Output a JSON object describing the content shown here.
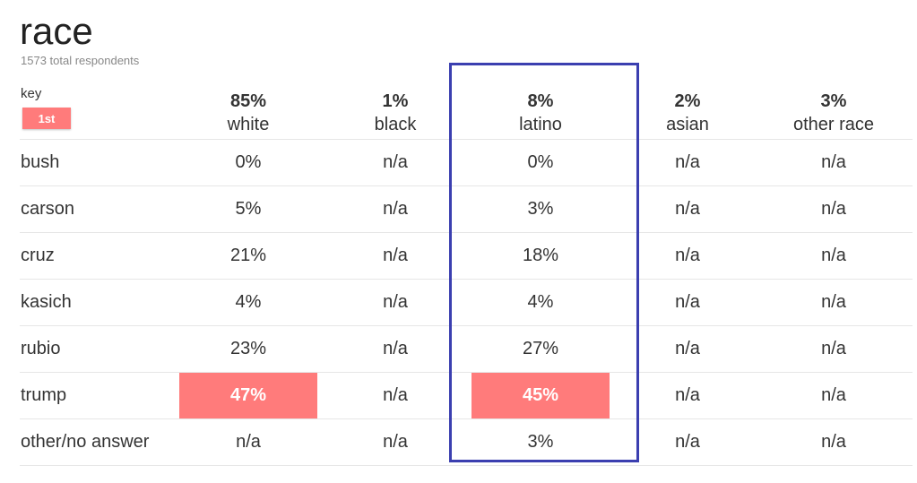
{
  "title": "race",
  "subtitle": "1573 total respondents",
  "key": {
    "label": "key",
    "badge": "1st"
  },
  "colors": {
    "highlight": "#ff7b7b",
    "outline": "#3b3fb0"
  },
  "columns": [
    {
      "pct": "85%",
      "name": "white"
    },
    {
      "pct": "1%",
      "name": "black"
    },
    {
      "pct": "8%",
      "name": "latino"
    },
    {
      "pct": "2%",
      "name": "asian"
    },
    {
      "pct": "3%",
      "name": "other race"
    }
  ],
  "rows": [
    {
      "label": "bush",
      "values": [
        "0%",
        "n/a",
        "0%",
        "n/a",
        "n/a"
      ]
    },
    {
      "label": "carson",
      "values": [
        "5%",
        "n/a",
        "3%",
        "n/a",
        "n/a"
      ]
    },
    {
      "label": "cruz",
      "values": [
        "21%",
        "n/a",
        "18%",
        "n/a",
        "n/a"
      ]
    },
    {
      "label": "kasich",
      "values": [
        "4%",
        "n/a",
        "4%",
        "n/a",
        "n/a"
      ]
    },
    {
      "label": "rubio",
      "values": [
        "23%",
        "n/a",
        "27%",
        "n/a",
        "n/a"
      ]
    },
    {
      "label": "trump",
      "values": [
        "47%",
        "n/a",
        "45%",
        "n/a",
        "n/a"
      ]
    },
    {
      "label": "other/no answer",
      "values": [
        "n/a",
        "n/a",
        "3%",
        "n/a",
        "n/a"
      ]
    }
  ]
}
